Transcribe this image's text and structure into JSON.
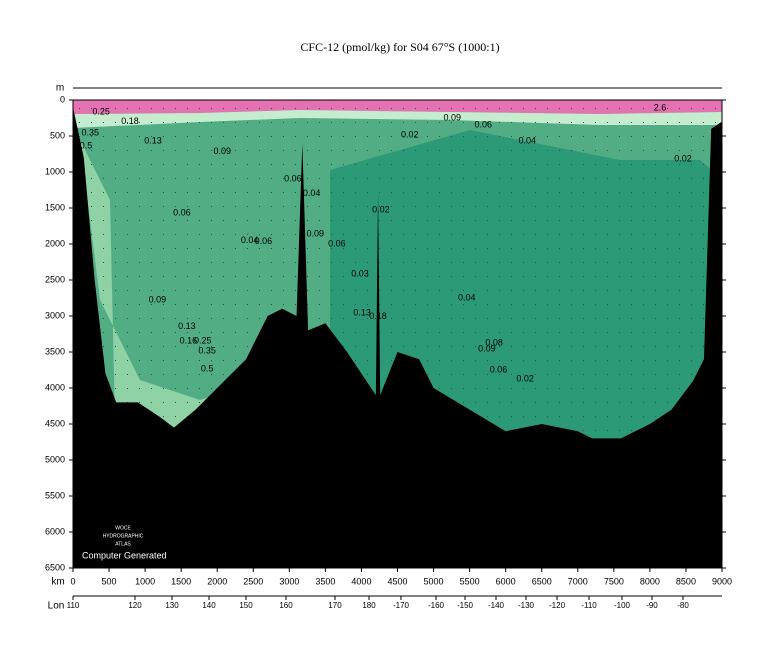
{
  "chart_data": {
    "type": "section",
    "title": "CFC-12 (pmol/kg) for S04 67°S (1000:1)",
    "ylabel": "m",
    "xlabel": "km",
    "x2label": "Lon",
    "ylim": [
      0,
      6500
    ],
    "yticks": [
      0,
      500,
      1000,
      1500,
      2000,
      2500,
      3000,
      3500,
      4000,
      4500,
      5000,
      5500,
      6000,
      6500
    ],
    "xlim": [
      0,
      9000
    ],
    "xticks": [
      0,
      500,
      1000,
      1500,
      2000,
      2500,
      3000,
      3500,
      4000,
      4500,
      5000,
      5500,
      6000,
      6500,
      7000,
      7500,
      8000,
      8500,
      9000
    ],
    "x2ticks": [
      {
        "value": 0,
        "label": "110"
      },
      {
        "value": 860,
        "label": "120"
      },
      {
        "value": 1373,
        "label": "130"
      },
      {
        "value": 1886,
        "label": "140"
      },
      {
        "value": 2399,
        "label": "150"
      },
      {
        "value": 2954,
        "label": "160"
      },
      {
        "value": 3633,
        "label": "170"
      },
      {
        "value": 4105,
        "label": "180"
      },
      {
        "value": 4548,
        "label": "-170"
      },
      {
        "value": 5034,
        "label": "-160"
      },
      {
        "value": 5436,
        "label": "-150"
      },
      {
        "value": 5866,
        "label": "-140"
      },
      {
        "value": 6282,
        "label": "-130"
      },
      {
        "value": 6712,
        "label": "-120"
      },
      {
        "value": 7156,
        "label": "-110"
      },
      {
        "value": 7613,
        "label": "-100"
      },
      {
        "value": 8029,
        "label": "-90"
      },
      {
        "value": 8459,
        "label": "-80"
      }
    ],
    "bottom": {
      "x": [
        0,
        150,
        300,
        450,
        600,
        900,
        1200,
        1400,
        1700,
        2000,
        2400,
        2700,
        2900,
        3100,
        3180,
        3260,
        3500,
        3800,
        4000,
        4200,
        4230,
        4260,
        4500,
        4800,
        5000,
        5500,
        6000,
        6500,
        7000,
        7200,
        7600,
        8000,
        8300,
        8600,
        8750,
        8850,
        9000
      ],
      "depth": [
        100,
        800,
        2500,
        3800,
        4200,
        4200,
        4400,
        4550,
        4300,
        4000,
        3600,
        3000,
        2900,
        3000,
        600,
        3200,
        3100,
        3500,
        3800,
        4100,
        1300,
        4100,
        3500,
        3600,
        4000,
        4300,
        4600,
        4500,
        4600,
        4700,
        4700,
        4500,
        4300,
        3900,
        3600,
        400,
        300
      ]
    },
    "contour_labels": [
      {
        "label": "0.25",
        "x": 390,
        "y": 170
      },
      {
        "label": "0.18",
        "x": 790,
        "y": 300
      },
      {
        "label": "0.13",
        "x": 1110,
        "y": 570
      },
      {
        "label": "0.09",
        "x": 2070,
        "y": 720
      },
      {
        "label": "0.06",
        "x": 3050,
        "y": 1100
      },
      {
        "label": "0.04",
        "x": 3310,
        "y": 1300
      },
      {
        "label": "0.06",
        "x": 1510,
        "y": 1570
      },
      {
        "label": "0.04",
        "x": 2450,
        "y": 1950
      },
      {
        "label": "0.06",
        "x": 2640,
        "y": 1970
      },
      {
        "label": "0.09",
        "x": 3360,
        "y": 1860
      },
      {
        "label": "0.06",
        "x": 3660,
        "y": 2000
      },
      {
        "label": "0.02",
        "x": 4270,
        "y": 1530
      },
      {
        "label": "0.03",
        "x": 3980,
        "y": 2420
      },
      {
        "label": "0.02",
        "x": 4670,
        "y": 490
      },
      {
        "label": "0.06",
        "x": 5690,
        "y": 350
      },
      {
        "label": "0.04",
        "x": 6300,
        "y": 570
      },
      {
        "label": "0.02",
        "x": 8460,
        "y": 820
      },
      {
        "label": "2.6",
        "x": 8140,
        "y": 110
      },
      {
        "label": "0.09",
        "x": 1170,
        "y": 2780
      },
      {
        "label": "0.13",
        "x": 1580,
        "y": 3150
      },
      {
        "label": "0.13",
        "x": 4010,
        "y": 2960
      },
      {
        "label": "0.18",
        "x": 4230,
        "y": 3010
      },
      {
        "label": "0.16",
        "x": 1600,
        "y": 3350
      },
      {
        "label": "0.25",
        "x": 1800,
        "y": 3350
      },
      {
        "label": "0.35",
        "x": 1860,
        "y": 3490
      },
      {
        "label": "0.5",
        "x": 1860,
        "y": 3740
      },
      {
        "label": "0.04",
        "x": 5460,
        "y": 2750
      },
      {
        "label": "0.08",
        "x": 5840,
        "y": 3380
      },
      {
        "label": "0.09",
        "x": 5740,
        "y": 3460
      },
      {
        "label": "0.06",
        "x": 5900,
        "y": 3750
      },
      {
        "label": "0.02",
        "x": 6270,
        "y": 3880
      },
      {
        "label": "0.35",
        "x": 240,
        "y": 460
      },
      {
        "label": "0.5",
        "x": 180,
        "y": 640
      },
      {
        "label": "0.09",
        "x": 5260,
        "y": 250
      }
    ],
    "annotations": [
      "WOCE",
      "HYDROGRAPHIC",
      "ATLAS",
      "Computer Generated"
    ]
  }
}
